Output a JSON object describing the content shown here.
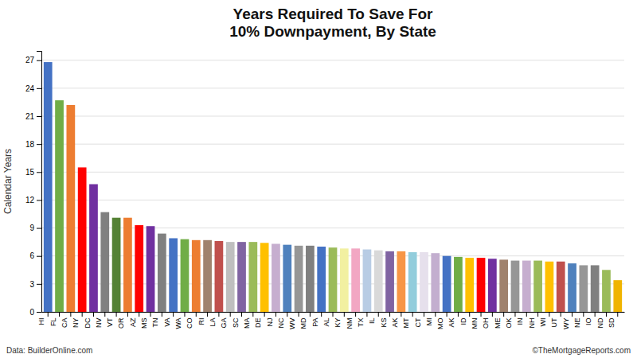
{
  "chart_data": {
    "type": "bar",
    "title": "Years Required To Save For\n10% Downpayment, By State",
    "y_label": "Calendar Years",
    "annotations": [
      "Data: BuilderOnline.com",
      "©TheMortgageReports.com"
    ],
    "categories": [
      "HI",
      "FL",
      "CA",
      "NY",
      "DC",
      "NV",
      "VT",
      "OR",
      "AZ",
      "MS",
      "TN",
      "VA",
      "WA",
      "CO",
      "RI",
      "LA",
      "GA",
      "SC",
      "MA",
      "DE",
      "NJ",
      "NC",
      "WV",
      "MD",
      "PA",
      "AL",
      "KY",
      "NM",
      "TX",
      "IL",
      "KS",
      "AK",
      "MT",
      "CT",
      "MI",
      "MO",
      "AK",
      "ID",
      "MN",
      "OH",
      "ME",
      "OK",
      "IN",
      "NH",
      "WI",
      "UT",
      "WY",
      "NE",
      "IO",
      "ND",
      "SD"
    ],
    "values": [
      26.8,
      22.7,
      22.2,
      15.5,
      13.7,
      10.7,
      10.1,
      10.1,
      9.3,
      9.2,
      8.4,
      7.9,
      7.8,
      7.7,
      7.7,
      7.6,
      7.5,
      7.5,
      7.5,
      7.4,
      7.3,
      7.2,
      7.1,
      7.1,
      7.0,
      6.9,
      6.8,
      6.8,
      6.7,
      6.6,
      6.5,
      6.5,
      6.4,
      6.4,
      6.3,
      6.0,
      5.9,
      5.8,
      5.8,
      5.7,
      5.6,
      5.5,
      5.5,
      5.5,
      5.4,
      5.4,
      5.2,
      5.0,
      5.0,
      4.5,
      3.4
    ],
    "colors": [
      "#4472C4",
      "#70AD47",
      "#ED7D31",
      "#FF0000",
      "#7030A0",
      "#808080",
      "#548235",
      "#ED7D31",
      "#FF0000",
      "#7030A0",
      "#808080",
      "#4472C4",
      "#70AD47",
      "#ED7D31",
      "#A0826D",
      "#C0504D",
      "#BFBFBF",
      "#8064A2",
      "#9BBB59",
      "#FFC000",
      "#C6AECF",
      "#4F81BD",
      "#969696",
      "#808080",
      "#4472C4",
      "#9BBB59",
      "#F2F0A1",
      "#F2A7C3",
      "#B8CCE4",
      "#D9D9D9",
      "#8064A2",
      "#F79646",
      "#92CDDC",
      "#E6E0EC",
      "#C3AECF",
      "#4472C4",
      "#70AD47",
      "#FFC000",
      "#FF0000",
      "#7030A0",
      "#A0826D",
      "#969696",
      "#C6AECF",
      "#9BBB59",
      "#FFC000",
      "#C0504D",
      "#4F81BD",
      "#969696",
      "#808080",
      "#9BBB59",
      "#F0B400"
    ],
    "ylim": [
      0,
      28
    ],
    "yticks": [
      0,
      3,
      6,
      9,
      12,
      15,
      18,
      21,
      24,
      27
    ],
    "grid": true
  }
}
